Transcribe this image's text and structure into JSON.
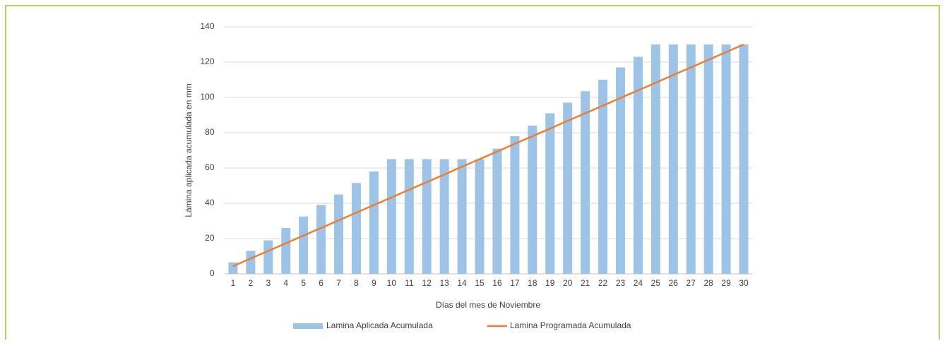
{
  "chart_data": {
    "type": "bar",
    "x_label": "Días del mes de Noviembre",
    "y_label": "Lámina aplicada acumulada en mm",
    "categories": [
      "1",
      "2",
      "3",
      "4",
      "5",
      "6",
      "7",
      "8",
      "9",
      "10",
      "11",
      "12",
      "13",
      "14",
      "15",
      "16",
      "17",
      "18",
      "19",
      "20",
      "21",
      "22",
      "23",
      "24",
      "25",
      "26",
      "27",
      "28",
      "29",
      "30"
    ],
    "series": [
      {
        "name": "Lamina Aplicada Acumulada",
        "type": "bar",
        "color": "#9dc3e6",
        "values": [
          6.5,
          13,
          19,
          26,
          32.5,
          39,
          45,
          51.5,
          58,
          65,
          65,
          65,
          65,
          65,
          65,
          71,
          78,
          84,
          91,
          97,
          103.5,
          110,
          117,
          123,
          130,
          130,
          130,
          130,
          130,
          130
        ]
      },
      {
        "name": "Lamina Programada Acumulada",
        "type": "line",
        "color": "#ed7d31",
        "values": [
          4.3,
          8.7,
          13,
          17.3,
          21.7,
          26,
          30.3,
          34.7,
          39,
          43.3,
          47.7,
          52,
          56.3,
          60.7,
          65,
          69.3,
          73.7,
          78,
          82.3,
          86.7,
          91,
          95.3,
          99.7,
          104,
          108.3,
          112.7,
          117,
          121.3,
          125.7,
          130
        ]
      }
    ],
    "ylim": [
      0,
      140
    ],
    "yticks": [
      0,
      20,
      40,
      60,
      80,
      100,
      120,
      140
    ],
    "grid": true,
    "legend": "bottom"
  }
}
